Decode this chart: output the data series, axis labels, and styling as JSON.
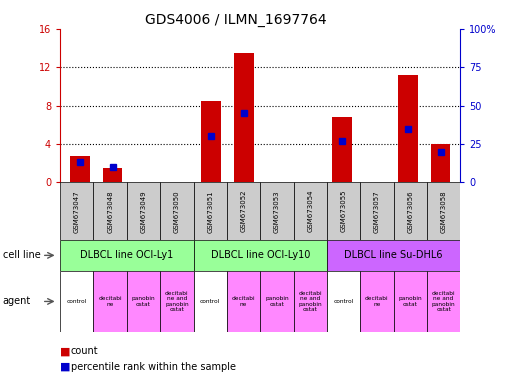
{
  "title": "GDS4006 / ILMN_1697764",
  "samples": [
    "GSM673047",
    "GSM673048",
    "GSM673049",
    "GSM673050",
    "GSM673051",
    "GSM673052",
    "GSM673053",
    "GSM673054",
    "GSM673055",
    "GSM673057",
    "GSM673056",
    "GSM673058"
  ],
  "count_values": [
    2.8,
    1.5,
    0,
    0,
    8.5,
    13.5,
    0,
    0,
    6.8,
    0,
    11.2,
    4.0
  ],
  "percentile_values": [
    13,
    10,
    0,
    0,
    30,
    45,
    0,
    0,
    27,
    0,
    35,
    20
  ],
  "ylim_left": [
    0,
    16
  ],
  "ylim_right": [
    0,
    100
  ],
  "yticks_left": [
    0,
    4,
    8,
    12,
    16
  ],
  "yticks_right": [
    0,
    25,
    50,
    75,
    100
  ],
  "bar_color": "#cc0000",
  "percentile_color": "#0000cc",
  "cell_line_groups": [
    {
      "label": "DLBCL line OCI-Ly1",
      "start": 0,
      "end": 3,
      "color": "#99ff99"
    },
    {
      "label": "DLBCL line OCI-Ly10",
      "start": 4,
      "end": 7,
      "color": "#99ff99"
    },
    {
      "label": "DLBCL line Su-DHL6",
      "start": 8,
      "end": 11,
      "color": "#cc66ff"
    }
  ],
  "agent_labels": [
    "control",
    "decitabi\nne",
    "panobin\nostat",
    "decitabi\nne and\npanobin\nostat",
    "control",
    "decitabi\nne",
    "panobin\nostat",
    "decitabi\nne and\npanobin\nostat",
    "control",
    "decitabi\nne",
    "panobin\nostat",
    "decitabi\nne and\npanobin\nostat"
  ],
  "agent_colors": [
    "#ffffff",
    "#ff88ff",
    "#ff88ff",
    "#ff88ff",
    "#ffffff",
    "#ff88ff",
    "#ff88ff",
    "#ff88ff",
    "#ffffff",
    "#ff88ff",
    "#ff88ff",
    "#ff88ff"
  ],
  "label_color_left": "#cc0000",
  "label_color_right": "#0000cc",
  "grid_color": "#000000",
  "sample_bg_color": "#cccccc",
  "border_color": "#000000"
}
